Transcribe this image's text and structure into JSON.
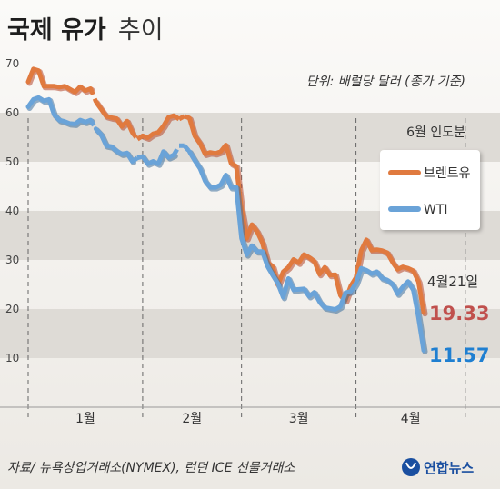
{
  "title": "국제 유가",
  "subtitle": "추이",
  "unit_note": "단위: 배럴당 달러 (종가 기준)",
  "asof_note": "6월 인도분",
  "source": "자료/ 뉴욕상업거래소(NYMEX), 런던 ICE 선물거래소",
  "brand": "연합뉴스",
  "end_label": {
    "date": "4월21일",
    "brent_value": "19.33",
    "wti_value": "11.57"
  },
  "colors": {
    "brent": "#e07a3f",
    "brent_shadow": "#b5452a",
    "wti": "#6aa3d8",
    "wti_shadow": "#3d6f9e",
    "brent_text": "#c0504d",
    "wti_text": "#1f7fd1",
    "band": "#dedbd6",
    "background": "#f3f1ee"
  },
  "chart_data": {
    "type": "line",
    "title": "국제 유가 추이",
    "ylabel": "단위: 배럴당 달러 (종가 기준)",
    "ylim": [
      0,
      70
    ],
    "yticks": [
      10,
      20,
      30,
      40,
      50,
      60,
      70
    ],
    "month_labels": [
      "1월",
      "2월",
      "3월",
      "4월"
    ],
    "month_separators_day_index": [
      0,
      22,
      41,
      63,
      84
    ],
    "legend": "right",
    "series": [
      {
        "name": "브렌트유",
        "values": [
          66.3,
          68.9,
          68.6,
          65.4,
          65.4,
          65.4,
          65.2,
          65.4,
          64.8,
          64.2,
          65.3,
          64.5,
          64.9,
          62.3,
          60.8,
          59.3,
          59.0,
          58.8,
          57.2,
          58.3,
          56.0,
          54.6,
          55.3,
          54.9,
          55.7,
          56.0,
          57.3,
          59.1,
          59.4,
          58.7,
          59.3,
          58.9,
          55.3,
          53.8,
          51.6,
          51.9,
          51.7,
          52.1,
          53.4,
          49.7,
          49.1,
          40.3,
          34.4,
          37.2,
          35.8,
          33.5,
          29.5,
          28.6,
          24.9,
          27.6,
          28.5,
          30.1,
          29.4,
          31.1,
          30.5,
          29.7,
          27.1,
          28.5,
          26.9,
          27.0,
          22.8,
          21.8,
          24.7,
          26.4,
          31.9,
          34.1,
          32.0,
          32.1,
          31.9,
          31.5,
          29.6,
          28.1,
          28.6,
          28.3,
          27.8,
          25.6,
          19.3
        ],
        "last_value": 19.33
      },
      {
        "name": "WTI",
        "values": [
          61.2,
          62.7,
          63.1,
          62.4,
          62.7,
          59.6,
          58.5,
          58.2,
          57.8,
          57.7,
          58.5,
          58.1,
          58.5,
          56.7,
          55.6,
          53.3,
          53.1,
          52.2,
          51.6,
          51.8,
          50.1,
          50.8,
          51.1,
          49.6,
          50.1,
          49.6,
          52.1,
          50.9,
          51.4,
          53.3,
          53.3,
          52.1,
          50.3,
          48.7,
          46.1,
          44.8,
          44.8,
          45.3,
          47.3,
          44.8,
          44.8,
          34.4,
          31.1,
          32.9,
          31.7,
          31.7,
          28.7,
          26.9,
          25.2,
          22.4,
          26.2,
          23.9,
          24.0,
          24.1,
          22.6,
          23.4,
          21.5,
          20.3,
          20.1,
          19.9,
          20.5,
          23.3,
          23.6,
          25.3,
          28.3,
          27.9,
          27.2,
          27.6,
          26.3,
          25.9,
          25.1,
          23.1,
          24.5,
          25.6,
          23.9,
          18.3,
          11.6
        ],
        "last_value": 11.57
      }
    ]
  }
}
